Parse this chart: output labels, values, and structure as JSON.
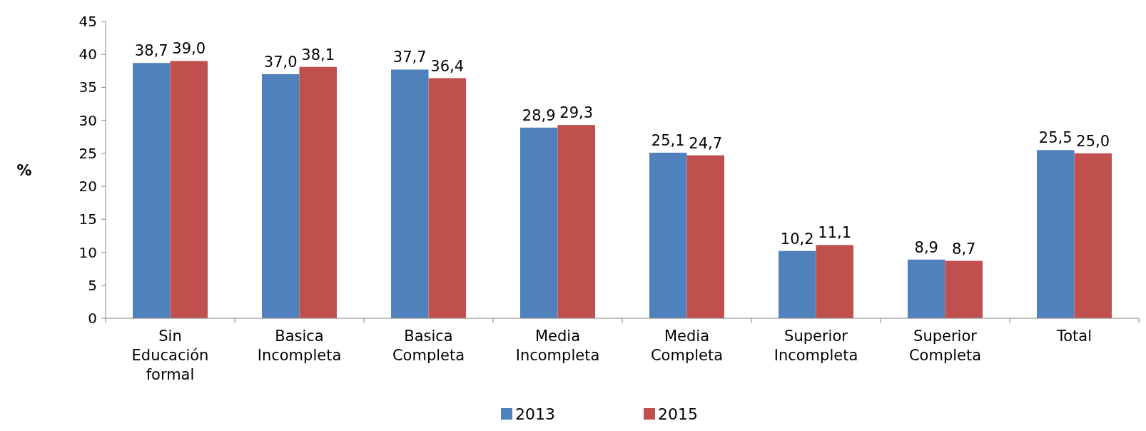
{
  "chart_data": {
    "type": "bar",
    "ylabel": "%",
    "categories": [
      "Sin Educación formal",
      "Basica Incompleta",
      "Basica Completa",
      "Media Incompleta",
      "Media Completa",
      "Superior Incompleta",
      "Superior Completa",
      "Total"
    ],
    "series": [
      {
        "name": "2013",
        "color": "#4f81bd",
        "values": [
          38.7,
          37.0,
          37.7,
          28.9,
          25.1,
          10.2,
          8.9,
          25.5
        ],
        "value_labels": [
          "38,7",
          "37,0",
          "37,7",
          "28,9",
          "25,1",
          "10,2",
          "8,9",
          "25,5"
        ]
      },
      {
        "name": "2015",
        "color": "#c0504d",
        "values": [
          39.0,
          38.1,
          36.4,
          29.3,
          24.7,
          11.1,
          8.7,
          25.0
        ],
        "value_labels": [
          "39,0",
          "38,1",
          "36,4",
          "29,3",
          "24,7",
          "11,1",
          "8,7",
          "25,0"
        ]
      }
    ],
    "ylim": [
      0,
      45
    ],
    "yticks": [
      0,
      5,
      10,
      15,
      20,
      25,
      30,
      35,
      40,
      45
    ],
    "grid": false,
    "legend": "bottom"
  }
}
